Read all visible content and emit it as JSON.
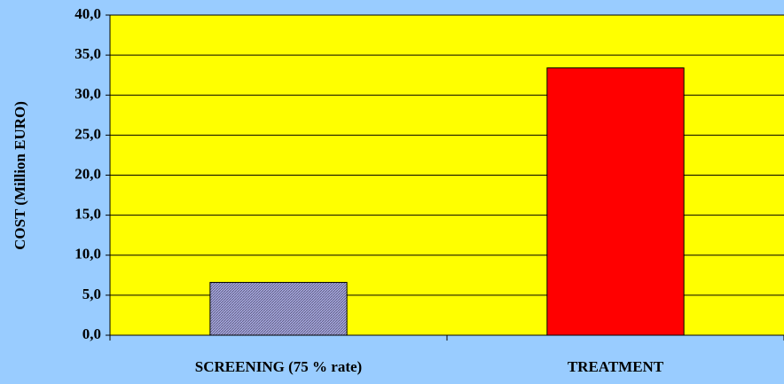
{
  "chart_data": {
    "type": "bar",
    "y_label": "COST (Million EURO)",
    "categories": [
      "SCREENING (75 % rate)",
      "TREATMENT"
    ],
    "values": [
      6.6,
      33.4
    ],
    "colors": [
      "#a8a8e0",
      "#ff0000"
    ],
    "hatch": [
      true,
      false
    ],
    "plot_background": "#ffff00",
    "ylim": [
      0,
      40
    ],
    "yticks": [
      {
        "value": 0,
        "label": "0,0"
      },
      {
        "value": 5,
        "label": "5,0"
      },
      {
        "value": 10,
        "label": "10,0"
      },
      {
        "value": 15,
        "label": "15,0"
      },
      {
        "value": 20,
        "label": "20,0"
      },
      {
        "value": 25,
        "label": "25,0"
      },
      {
        "value": 30,
        "label": "30,0"
      },
      {
        "value": 35,
        "label": "35,0"
      },
      {
        "value": 40,
        "label": "40,0"
      }
    ],
    "grid": true
  }
}
